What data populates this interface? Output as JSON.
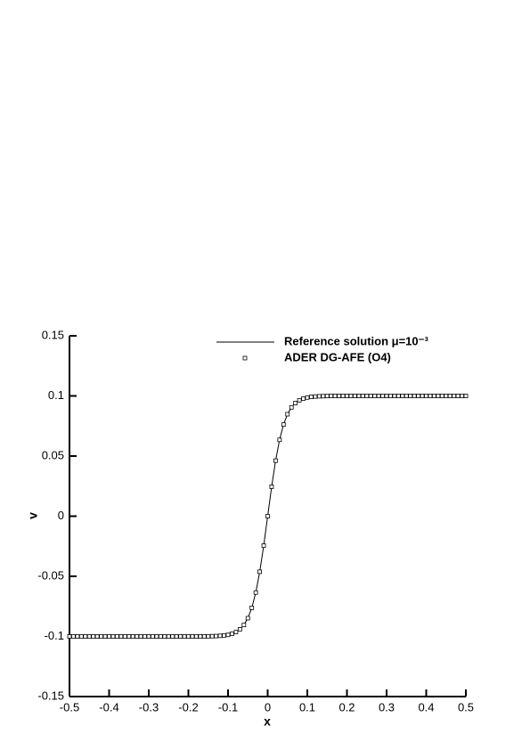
{
  "chart_data": {
    "type": "line",
    "x_label": "x",
    "y_label": "v",
    "x": [
      -0.5,
      -0.49,
      -0.48,
      -0.47,
      -0.46,
      -0.45,
      -0.44,
      -0.43,
      -0.42,
      -0.41,
      -0.4,
      -0.39,
      -0.38,
      -0.37,
      -0.36,
      -0.35,
      -0.34,
      -0.33,
      -0.32,
      -0.31,
      -0.3,
      -0.29,
      -0.28,
      -0.27,
      -0.26,
      -0.25,
      -0.24,
      -0.23,
      -0.22,
      -0.21,
      -0.2,
      -0.19,
      -0.18,
      -0.17,
      -0.16,
      -0.15,
      -0.14,
      -0.13,
      -0.12,
      -0.11,
      -0.1,
      -0.09,
      -0.08,
      -0.07,
      -0.06,
      -0.05,
      -0.04,
      -0.03,
      -0.02,
      -0.01,
      0,
      0.01,
      0.02,
      0.03,
      0.04,
      0.05,
      0.06,
      0.07,
      0.08,
      0.09,
      0.1,
      0.11,
      0.12,
      0.13,
      0.14,
      0.15,
      0.16,
      0.17,
      0.18,
      0.19,
      0.2,
      0.21,
      0.22,
      0.23,
      0.24,
      0.25,
      0.26,
      0.27,
      0.28,
      0.29,
      0.3,
      0.31,
      0.32,
      0.33,
      0.34,
      0.35,
      0.36,
      0.37,
      0.38,
      0.39,
      0.4,
      0.41,
      0.42,
      0.43,
      0.44,
      0.45,
      0.46,
      0.47,
      0.48,
      0.49,
      0.5
    ],
    "series": [
      {
        "name": "Reference solution  μ=10⁻³",
        "color": "#000000",
        "style": "line",
        "values": [
          -0.1,
          -0.1,
          -0.1,
          -0.1,
          -0.1,
          -0.1,
          -0.1,
          -0.1,
          -0.1,
          -0.1,
          -0.1,
          -0.1,
          -0.1,
          -0.1,
          -0.1,
          -0.1,
          -0.1,
          -0.1,
          -0.1,
          -0.1,
          -0.1,
          -0.1,
          -0.1,
          -0.1,
          -0.1,
          -0.1,
          -0.1,
          -0.1,
          -0.1,
          -0.1,
          -0.1,
          -0.1,
          -0.1,
          -0.1,
          -0.1,
          -0.0999,
          -0.0998,
          -0.0997,
          -0.0995,
          -0.0992,
          -0.0987,
          -0.0978,
          -0.0964,
          -0.0941,
          -0.0905,
          -0.0848,
          -0.0762,
          -0.0635,
          -0.0462,
          -0.0245,
          0,
          0.0245,
          0.0462,
          0.0635,
          0.0762,
          0.0848,
          0.0905,
          0.0941,
          0.0964,
          0.0978,
          0.0987,
          0.0992,
          0.0995,
          0.0997,
          0.0998,
          0.0999,
          0.1,
          0.1,
          0.1,
          0.1,
          0.1,
          0.1,
          0.1,
          0.1,
          0.1,
          0.1,
          0.1,
          0.1,
          0.1,
          0.1,
          0.1,
          0.1,
          0.1,
          0.1,
          0.1,
          0.1,
          0.1,
          0.1,
          0.1,
          0.1,
          0.1,
          0.1,
          0.1,
          0.1,
          0.1,
          0.1,
          0.1,
          0.1,
          0.1,
          0.1,
          0.1
        ]
      },
      {
        "name": "ADER DG-AFE (O4)",
        "color": "#000000",
        "style": "square",
        "values": [
          -0.1,
          -0.1,
          -0.1,
          -0.1,
          -0.1,
          -0.1,
          -0.1,
          -0.1,
          -0.1,
          -0.1,
          -0.1,
          -0.1,
          -0.1,
          -0.1,
          -0.1,
          -0.1,
          -0.1,
          -0.1,
          -0.1,
          -0.1,
          -0.1,
          -0.1,
          -0.1,
          -0.1,
          -0.1,
          -0.1,
          -0.1,
          -0.1,
          -0.1,
          -0.1,
          -0.1,
          -0.1,
          -0.1,
          -0.1,
          -0.1,
          -0.0999,
          -0.0998,
          -0.0997,
          -0.0995,
          -0.0992,
          -0.0987,
          -0.0978,
          -0.0964,
          -0.0941,
          -0.0905,
          -0.0848,
          -0.0762,
          -0.0635,
          -0.0462,
          -0.0245,
          0,
          0.0245,
          0.0462,
          0.0635,
          0.0762,
          0.0848,
          0.0905,
          0.0941,
          0.0964,
          0.0978,
          0.0987,
          0.0992,
          0.0995,
          0.0997,
          0.0998,
          0.0999,
          0.1,
          0.1,
          0.1,
          0.1,
          0.1,
          0.1,
          0.1,
          0.1,
          0.1,
          0.1,
          0.1,
          0.1,
          0.1,
          0.1,
          0.1,
          0.1,
          0.1,
          0.1,
          0.1,
          0.1,
          0.1,
          0.1,
          0.1,
          0.1,
          0.1,
          0.1,
          0.1,
          0.1,
          0.1,
          0.1,
          0.1,
          0.1,
          0.1,
          0.1,
          0.1
        ]
      }
    ],
    "xlim": [
      -0.5,
      0.5
    ],
    "ylim": [
      -0.15,
      0.15
    ],
    "xticks": [
      -0.5,
      -0.4,
      -0.3,
      -0.2,
      -0.1,
      0,
      0.1,
      0.2,
      0.3,
      0.4,
      0.5
    ],
    "yticks": [
      -0.15,
      -0.1,
      -0.05,
      0,
      0.05,
      0.1,
      0.15
    ],
    "legend": "top-right"
  }
}
